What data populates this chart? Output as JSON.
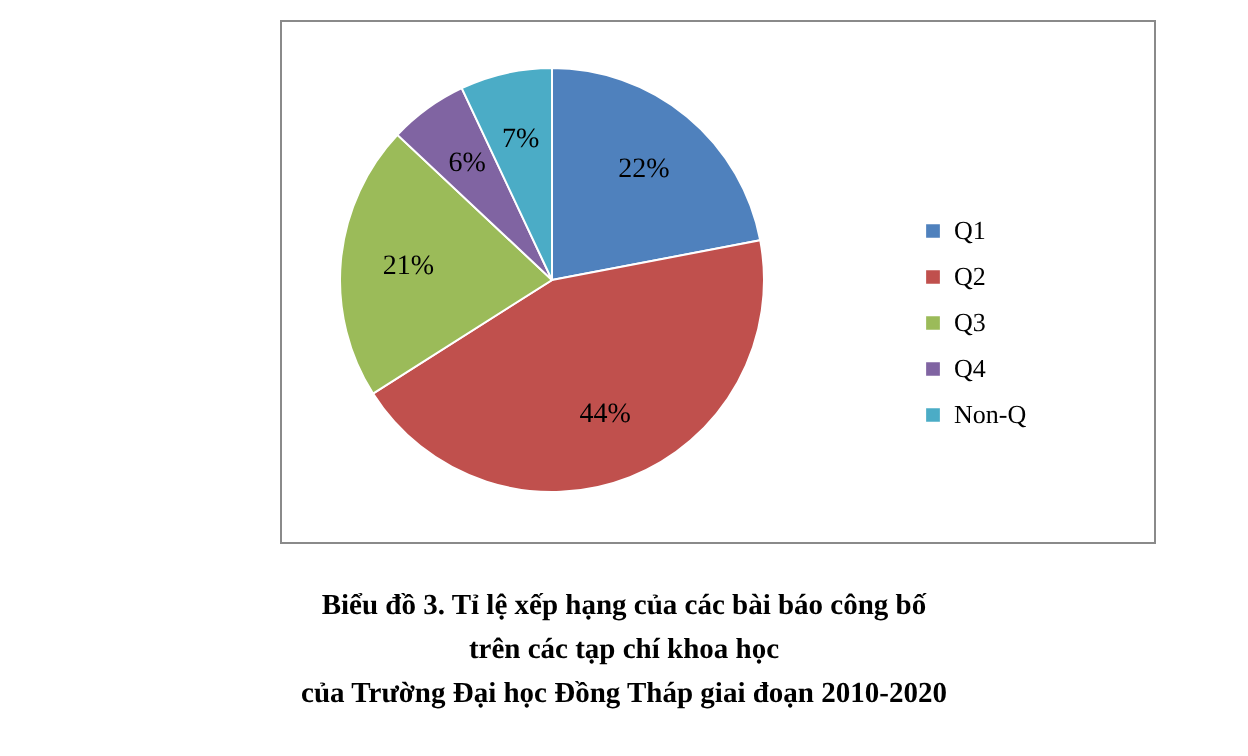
{
  "chart_data": {
    "type": "pie",
    "title": "Biểu đồ 3. Tỉ lệ xếp hạng của các bài báo công bố\ntrên các tạp chí khoa học\ncủa Trường Đại học Đồng Tháp giai đoạn 2010-2020",
    "categories": [
      "Q1",
      "Q2",
      "Q3",
      "Q4",
      "Non-Q"
    ],
    "values": [
      22,
      44,
      21,
      6,
      7
    ],
    "colors": [
      "#4f81bd",
      "#c0504d",
      "#9bbb59",
      "#8064a2",
      "#4bacc6"
    ],
    "value_labels": [
      "22%",
      "44%",
      "21%",
      "6%",
      "7%"
    ],
    "legend": "right"
  }
}
